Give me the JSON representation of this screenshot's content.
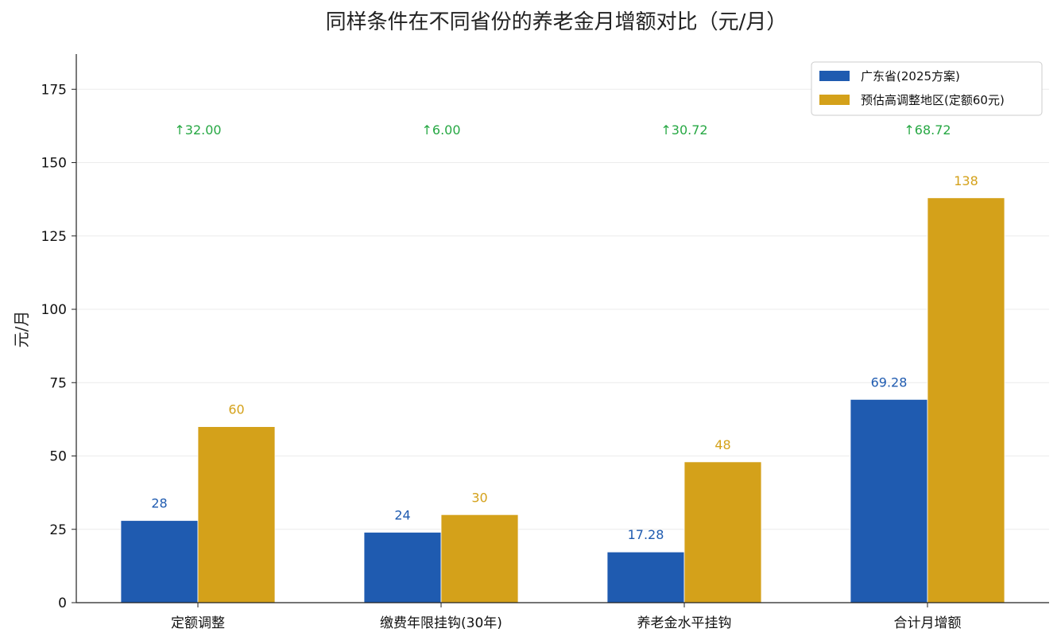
{
  "chart_data": {
    "type": "bar",
    "title": "同样条件在不同省份的养老金月增额对比（元/月）",
    "xlabel": "",
    "ylabel": "元/月",
    "ylim": [
      0,
      187
    ],
    "yticks": [
      0,
      25,
      50,
      75,
      100,
      125,
      150,
      175
    ],
    "categories": [
      "定额调整",
      "缴费年限挂钩(30年)",
      "养老金水平挂钩",
      "合计月增额"
    ],
    "series": [
      {
        "name": "广东省(2025方案)",
        "values": [
          28,
          24,
          17.28,
          69.28
        ],
        "labels": [
          "28",
          "24",
          "17.28",
          "69.28"
        ],
        "color": "#1f5bb0"
      },
      {
        "name": "预估高调整地区(定额60元)",
        "values": [
          60,
          30,
          48,
          138
        ],
        "labels": [
          "60",
          "30",
          "48",
          "138"
        ],
        "color": "#d4a11a"
      }
    ],
    "differences": [
      "↑32.00",
      "↑6.00",
      "↑30.72",
      "↑68.72"
    ],
    "difference_color": "#27a844",
    "difference_y": 161,
    "grid": "horizontal",
    "legend_position": "top-right"
  }
}
